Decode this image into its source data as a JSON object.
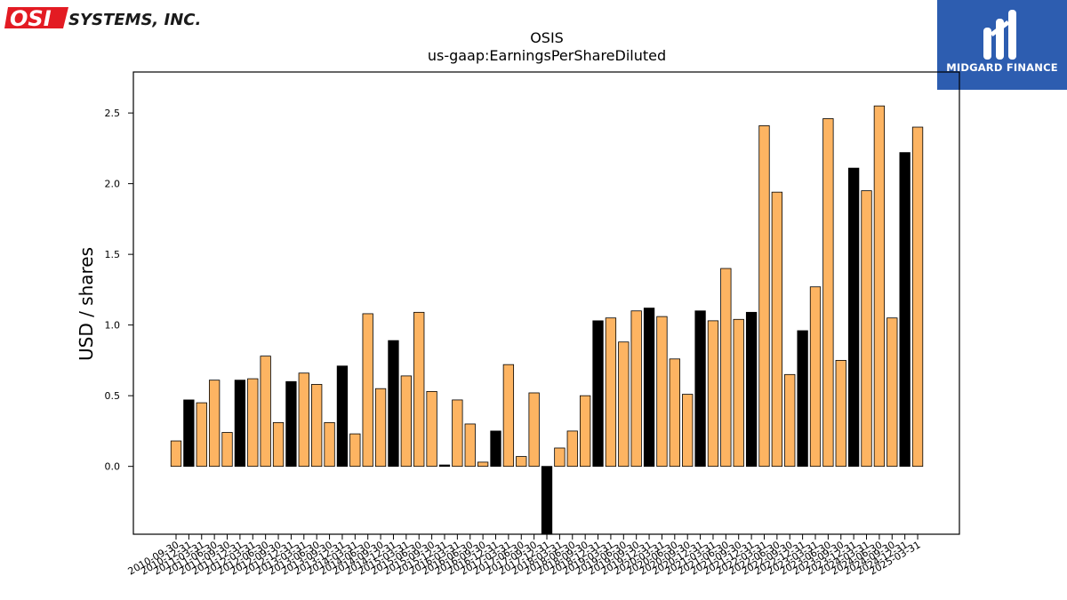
{
  "header": {
    "company_logo_text": "SYSTEMS, INC.",
    "company_logo_mark": "OSI",
    "brand_name": "MIDGARD FINANCE"
  },
  "colors": {
    "bar_default": "#fdb462",
    "bar_highlight": "#000000",
    "brand_bg": "#2d5db0",
    "logo_red": "#e31b23"
  },
  "chart_data": {
    "type": "bar",
    "title": "OSIS",
    "subtitle": "us-gaap:EarningsPerShareDiluted",
    "xlabel": "",
    "ylabel": "USD / shares",
    "ylim": [
      -0.48,
      2.79
    ],
    "yticks": [
      "0.0",
      "0.5",
      "1.0",
      "1.5",
      "2.0",
      "2.5"
    ],
    "ytick_values": [
      0.0,
      0.5,
      1.0,
      1.5,
      2.0,
      2.5
    ],
    "grid": false,
    "categories": [
      "2010-09-30",
      "2010-12-31",
      "2011-03-31",
      "2011-06-30",
      "2011-09-30",
      "2011-12-31",
      "2012-03-31",
      "2012-06-30",
      "2012-09-30",
      "2012-12-31",
      "2013-03-31",
      "2013-06-30",
      "2013-09-30",
      "2013-12-31",
      "2014-03-31",
      "2014-06-30",
      "2014-09-30",
      "2014-12-31",
      "2015-03-31",
      "2015-06-30",
      "2015-09-30",
      "2015-12-31",
      "2016-03-31",
      "2016-06-30",
      "2016-09-30",
      "2016-12-31",
      "2017-03-31",
      "2017-06-30",
      "2017-09-30",
      "2017-12-31",
      "2018-03-31",
      "2018-06-30",
      "2018-09-30",
      "2018-12-31",
      "2019-03-31",
      "2019-06-30",
      "2019-09-30",
      "2019-12-31",
      "2020-03-31",
      "2020-06-30",
      "2020-09-30",
      "2020-12-31",
      "2021-03-31",
      "2021-06-30",
      "2021-09-30",
      "2021-12-31",
      "2022-03-31",
      "2022-06-30",
      "2022-09-30",
      "2022-12-31",
      "2023-03-31",
      "2023-06-30",
      "2023-09-30",
      "2023-12-31",
      "2024-03-31",
      "2024-06-30",
      "2024-09-30",
      "2024-12-31",
      "2025-03-31"
    ],
    "values": [
      0.18,
      0.47,
      0.45,
      0.61,
      0.24,
      0.61,
      0.62,
      0.78,
      0.31,
      0.6,
      0.66,
      0.58,
      0.31,
      0.71,
      0.23,
      1.08,
      0.55,
      0.89,
      0.64,
      1.09,
      0.53,
      0.01,
      0.47,
      0.3,
      0.03,
      0.25,
      0.72,
      0.07,
      0.52,
      -0.52,
      0.13,
      0.25,
      0.5,
      1.03,
      1.05,
      0.88,
      1.1,
      1.12,
      1.06,
      0.76,
      0.51,
      1.1,
      1.03,
      1.4,
      1.04,
      1.09,
      2.41,
      1.94,
      0.65,
      0.96,
      1.27,
      2.46,
      0.75,
      2.11,
      1.95,
      2.55,
      1.05,
      2.22,
      2.4
    ],
    "highlight": [
      false,
      true,
      false,
      false,
      false,
      true,
      false,
      false,
      false,
      true,
      false,
      false,
      false,
      true,
      false,
      false,
      false,
      true,
      false,
      false,
      false,
      true,
      false,
      false,
      false,
      true,
      false,
      false,
      false,
      true,
      false,
      false,
      false,
      true,
      false,
      false,
      false,
      true,
      false,
      false,
      false,
      true,
      false,
      false,
      false,
      true,
      false,
      false,
      false,
      true,
      false,
      false,
      false,
      true,
      false,
      false,
      false,
      true,
      false
    ]
  }
}
